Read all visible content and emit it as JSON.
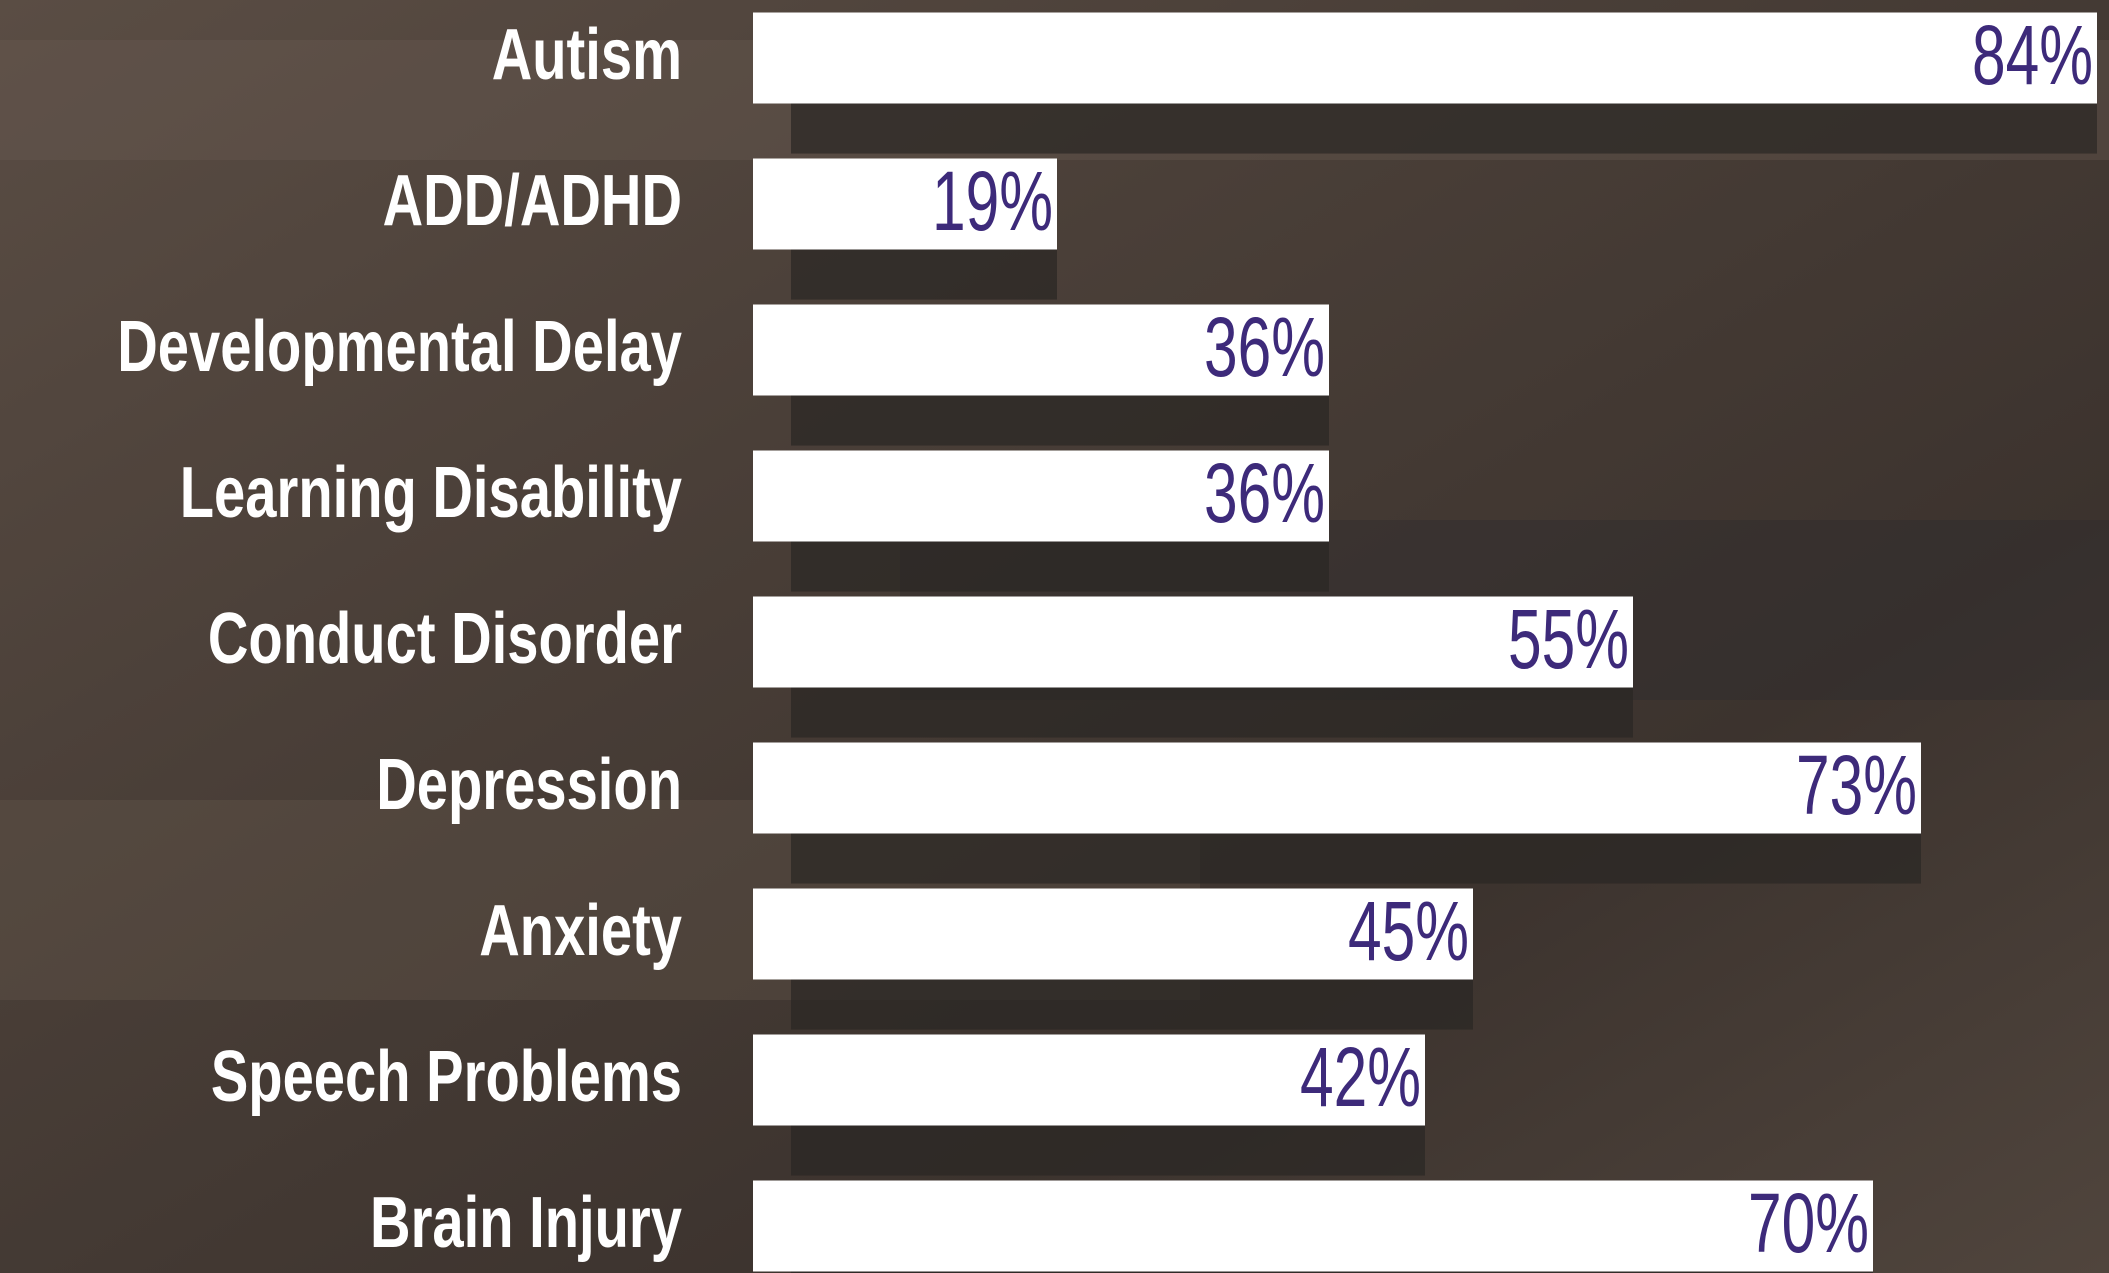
{
  "chart_data": {
    "type": "bar",
    "orientation": "horizontal",
    "categories": [
      "Autism",
      "ADD/ADHD",
      "Developmental Delay",
      "Learning Disability",
      "Conduct Disorder",
      "Depression",
      "Anxiety",
      "Speech Problems",
      "Brain Injury"
    ],
    "values": [
      84,
      19,
      36,
      36,
      55,
      73,
      45,
      42,
      70
    ],
    "value_labels": [
      "84%",
      "19%",
      "36%",
      "36%",
      "55%",
      "73%",
      "45%",
      "42%",
      "70%"
    ],
    "color": "#ffffff",
    "label_color": "#3d2a7a"
  }
}
